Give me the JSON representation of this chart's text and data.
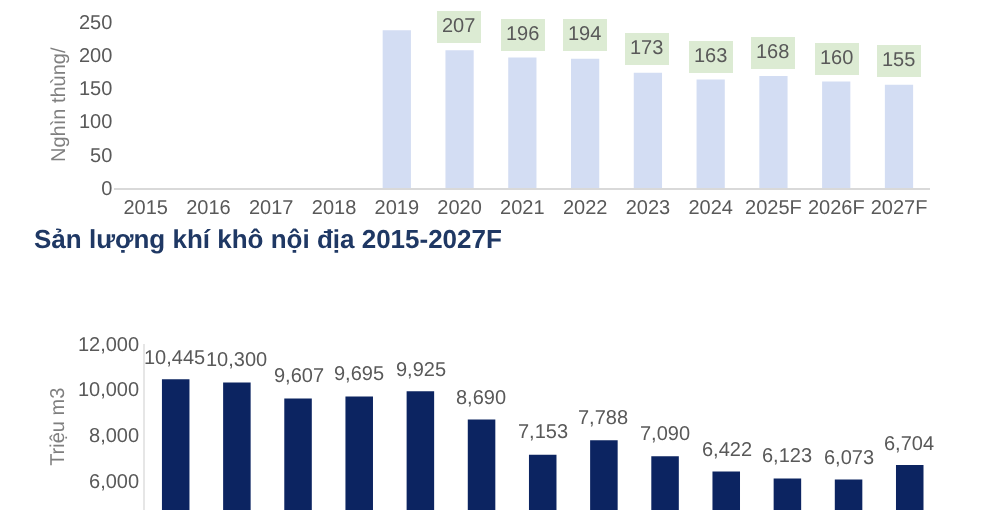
{
  "chart_data": [
    {
      "type": "bar",
      "ylabel": "Nghìn thùng/",
      "categories": [
        "2015",
        "2016",
        "2017",
        "2018",
        "2019",
        "2020",
        "2021",
        "2022",
        "2023",
        "2024",
        "2025F",
        "2026F",
        "2027F"
      ],
      "values": [
        null,
        null,
        null,
        null,
        237,
        207,
        196,
        194,
        173,
        163,
        168,
        160,
        155
      ],
      "value_labels": [
        null,
        null,
        null,
        null,
        null,
        "207",
        "196",
        "194",
        "173",
        "163",
        "168",
        "160",
        "155"
      ],
      "color": "#d3ddf3",
      "ylim": [
        0,
        250
      ],
      "yticks": [
        0,
        50,
        100,
        150,
        200,
        250
      ]
    },
    {
      "type": "bar",
      "title": "Sản lượng khí khô nội địa 2015-2027F",
      "ylabel": "Triệu m3",
      "categories": [
        null,
        null,
        null,
        null,
        null,
        null,
        null,
        null,
        null,
        null,
        null,
        null,
        null
      ],
      "values": [
        10445,
        10300,
        9607,
        9695,
        9925,
        8690,
        7153,
        7788,
        7090,
        6422,
        6123,
        6073,
        6704
      ],
      "value_labels": [
        "10,445",
        "10,300",
        "9,607",
        "9,695",
        "9,925",
        "8,690",
        "7,153",
        "7,788",
        "7,090",
        "6,422",
        "6,123",
        "6,073",
        "6,704"
      ],
      "color": "#0c2461",
      "ylim": [
        4750,
        12000
      ],
      "yticks": [
        {
          "value": 6000,
          "label": "6,000"
        },
        {
          "value": 8000,
          "label": "8,000"
        },
        {
          "value": 10000,
          "label": "10,000"
        },
        {
          "value": 12000,
          "label": "12,000"
        }
      ],
      "tick_labels": "y"
    }
  ]
}
